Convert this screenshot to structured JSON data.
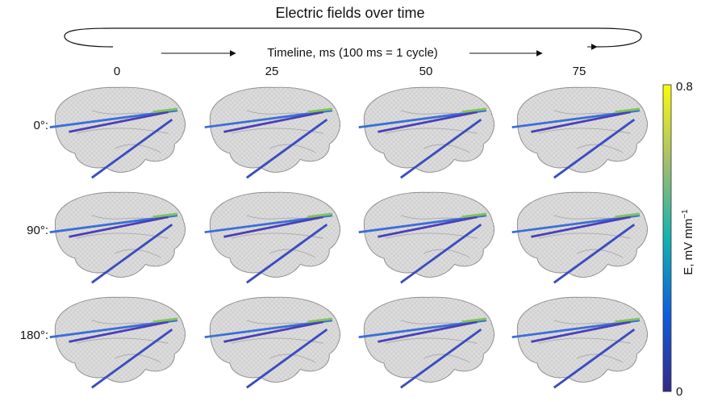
{
  "figure": {
    "title": "Electric fields over time",
    "timeline_label": "Timeline, ms (100 ms = 1 cycle)",
    "columns": [
      "0",
      "25",
      "50",
      "75"
    ],
    "rows": [
      "0°:",
      "90°:",
      "180°:"
    ],
    "colorbar": {
      "label": "E, mV mm",
      "label_superscript": "−1",
      "top_label": "0.8",
      "bottom_label": "0"
    }
  }
}
